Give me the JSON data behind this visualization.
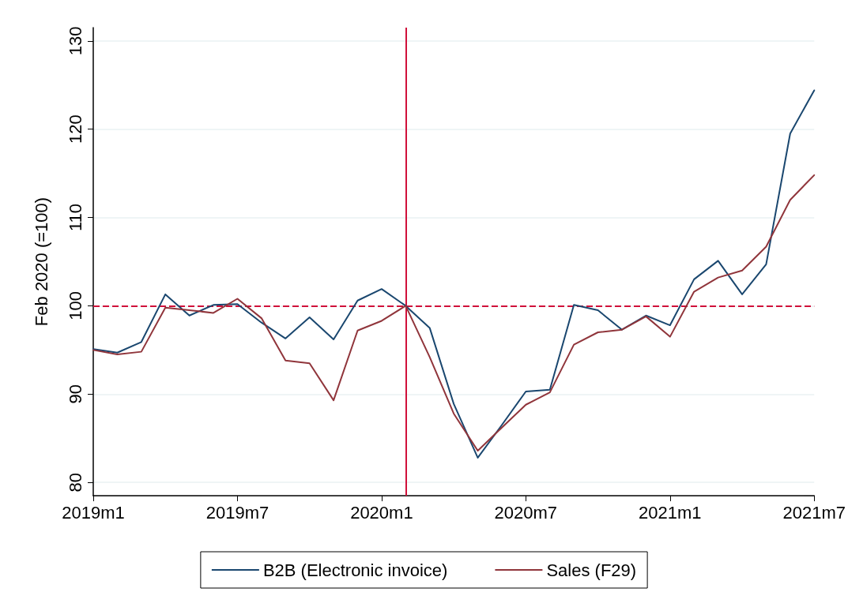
{
  "chart_data": {
    "type": "line",
    "ylabel": "Feb 2020 (=100)",
    "x": [
      "2019-01",
      "2019-02",
      "2019-03",
      "2019-04",
      "2019-05",
      "2019-06",
      "2019-07",
      "2019-08",
      "2019-09",
      "2019-10",
      "2019-11",
      "2019-12",
      "2020-01",
      "2020-02",
      "2020-03",
      "2020-04",
      "2020-05",
      "2020-06",
      "2020-07",
      "2020-08",
      "2020-09",
      "2020-10",
      "2020-11",
      "2020-12",
      "2021-01",
      "2021-02",
      "2021-03",
      "2021-04",
      "2021-05",
      "2021-06",
      "2021-07"
    ],
    "series": [
      {
        "name": "B2B (Electronic invoice)",
        "color": "#1a476f",
        "values": [
          95.1,
          94.7,
          95.9,
          101.3,
          98.9,
          100.1,
          100.2,
          98.1,
          96.3,
          98.7,
          96.2,
          100.6,
          101.9,
          100,
          97.5,
          88.9,
          82.8,
          86.5,
          90.3,
          90.5,
          100.1,
          99.5,
          97.3,
          98.9,
          97.8,
          103.0,
          105.1,
          101.3,
          104.7,
          119.5,
          124.4
        ]
      },
      {
        "name": "Sales (F29)",
        "color": "#90353b",
        "values": [
          95.0,
          94.5,
          94.8,
          99.8,
          99.5,
          99.2,
          100.8,
          98.6,
          93.8,
          93.5,
          89.3,
          97.2,
          98.3,
          100,
          94.2,
          87.8,
          83.6,
          86.2,
          88.8,
          90.2,
          95.6,
          97.0,
          97.3,
          98.8,
          96.5,
          101.6,
          103.2,
          104.0,
          106.7,
          112.0,
          114.8
        ]
      }
    ],
    "xlim": [
      "2019-01",
      "2021-07"
    ],
    "xticks": [
      {
        "value": "2019-01",
        "label": "2019m1"
      },
      {
        "value": "2019-07",
        "label": "2019m7"
      },
      {
        "value": "2020-01",
        "label": "2020m1"
      },
      {
        "value": "2020-07",
        "label": "2020m7"
      },
      {
        "value": "2021-01",
        "label": "2021m1"
      },
      {
        "value": "2021-07",
        "label": "2021m7"
      }
    ],
    "ylim": [
      78.5,
      131.5
    ],
    "yticks": [
      80,
      90,
      100,
      110,
      120,
      130
    ],
    "ref_lines": [
      {
        "axis": "y",
        "value": 100,
        "color": "#d0103a",
        "line_style": "dashed"
      },
      {
        "axis": "x",
        "value": "2020-02",
        "color": "#d0103a",
        "line_style": "solid"
      }
    ],
    "grid": "y",
    "legend": "bottom",
    "marker": "none",
    "line_style": "solid"
  }
}
